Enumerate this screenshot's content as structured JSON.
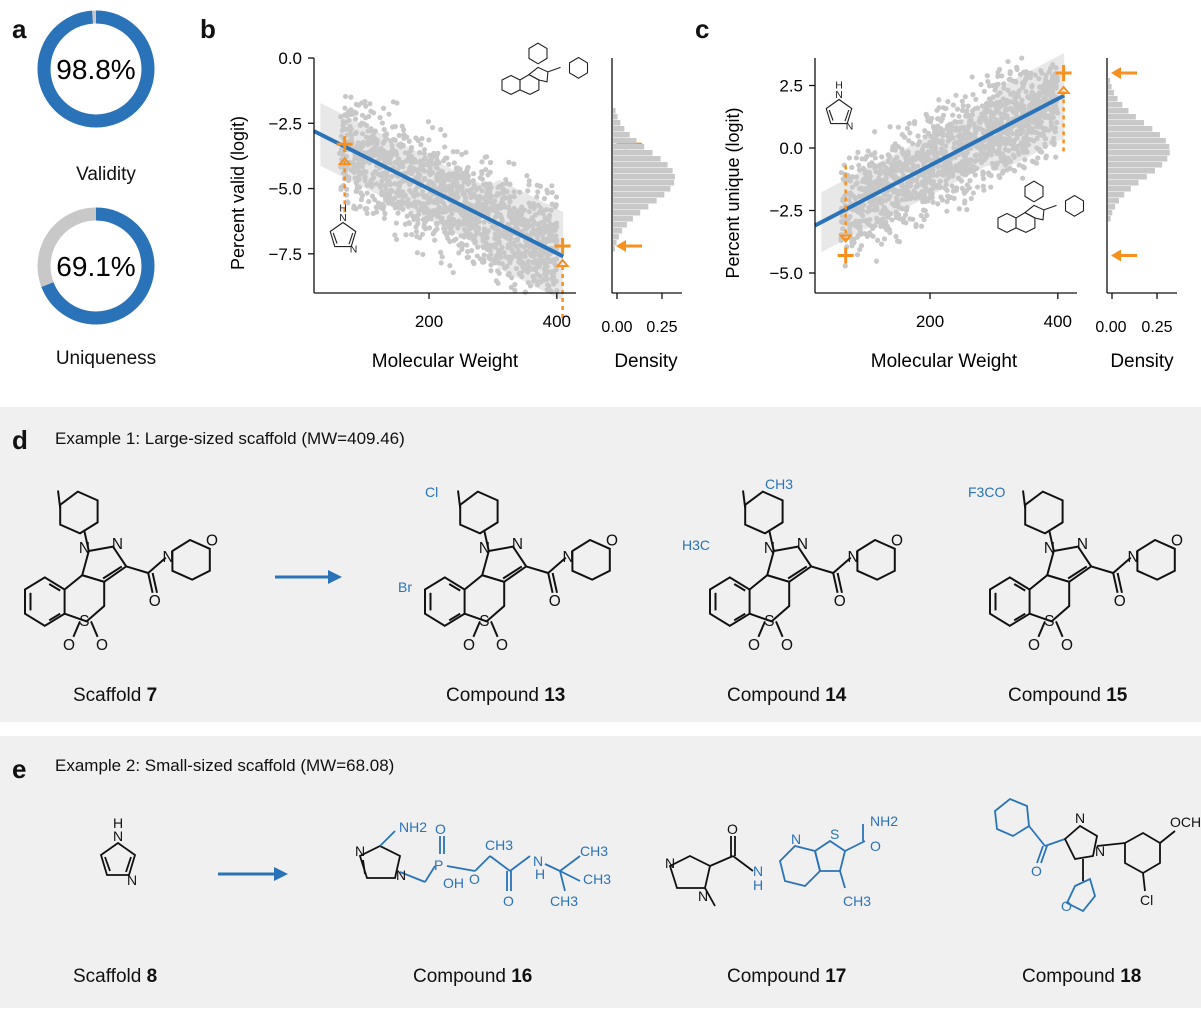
{
  "panels": {
    "a": "a",
    "b": "b",
    "c": "c",
    "d": "d",
    "e": "e"
  },
  "donuts": [
    {
      "value_text": "98.8%",
      "fraction": 0.988,
      "label": "Validity"
    },
    {
      "value_text": "69.1%",
      "fraction": 0.691,
      "label": "Uniqueness"
    }
  ],
  "chart_data": [
    {
      "type": "scatter",
      "xlabel": "Molecular Weight",
      "ylabel": "Percent valid (logit)",
      "xticks": [
        "200",
        "400"
      ],
      "yticks": [
        "0.0",
        "−2.5",
        "−5.0",
        "−7.5"
      ],
      "xlim": [
        20,
        430
      ],
      "ylim": [
        -9.0,
        0.0
      ],
      "fit_line": {
        "x": [
          20,
          410
        ],
        "y": [
          -2.8,
          -7.6
        ]
      },
      "highlight_points": [
        {
          "x": 68,
          "y": -3.3
        },
        {
          "x": 409,
          "y": -7.2
        }
      ],
      "density_xlabel": "Density",
      "density_xticks": [
        "0.00",
        "0.25"
      ],
      "colors": {
        "points": "#c8c8c8",
        "fit": "#2a73b8",
        "highlight": "#f7901e"
      }
    },
    {
      "type": "scatter",
      "xlabel": "Molecular Weight",
      "ylabel": "Percent unique (logit)",
      "xticks": [
        "200",
        "400"
      ],
      "yticks": [
        "2.5",
        "0.0",
        "−2.5",
        "−5.0"
      ],
      "xlim": [
        20,
        430
      ],
      "ylim": [
        -5.8,
        3.6
      ],
      "fit_line": {
        "x": [
          20,
          410
        ],
        "y": [
          -3.1,
          2.1
        ]
      },
      "highlight_points": [
        {
          "x": 68,
          "y": -4.3
        },
        {
          "x": 409,
          "y": 3.0
        }
      ],
      "density_xlabel": "Density",
      "density_xticks": [
        "0.00",
        "0.25"
      ],
      "colors": {
        "points": "#c8c8c8",
        "fit": "#2a73b8",
        "highlight": "#f7901e"
      }
    }
  ],
  "example1": {
    "title": "Example 1: Large-sized scaffold (MW=409.46)",
    "items": [
      {
        "prefix": "Scaffold ",
        "num": "7"
      },
      {
        "prefix": "Compound ",
        "num": "13"
      },
      {
        "prefix": "Compound ",
        "num": "14"
      },
      {
        "prefix": "Compound ",
        "num": "15"
      }
    ]
  },
  "example2": {
    "title": "Example 2: Small-sized scaffold (MW=68.08)",
    "items": [
      {
        "prefix": "Scaffold ",
        "num": "8"
      },
      {
        "prefix": "Compound ",
        "num": "16"
      },
      {
        "prefix": "Compound ",
        "num": "17"
      },
      {
        "prefix": "Compound ",
        "num": "18"
      }
    ]
  },
  "atoms": {
    "N": "N",
    "S": "S",
    "O": "O",
    "H": "H",
    "P": "P",
    "Cl": "Cl",
    "Br": "Br",
    "CH3": "CH3",
    "H3C": "H3C",
    "F3CO": "F3CO",
    "NH2": "NH2",
    "OH": "OH",
    "OCH3": "OCH3"
  }
}
